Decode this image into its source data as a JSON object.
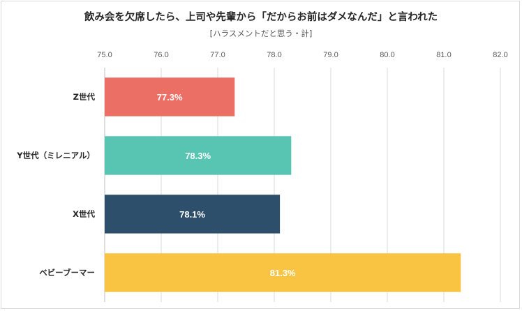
{
  "chart_data": {
    "type": "bar",
    "orientation": "horizontal",
    "title": "飲み会を欠席したら、上司や先輩から「だからお前はダメなんだ」と言われた",
    "subtitle": "[ハラスメントだと思う・計]",
    "categories": [
      "Z世代",
      "Y世代（ミレニアル）",
      "X世代",
      "ベビーブーマー"
    ],
    "values": [
      77.3,
      78.3,
      78.1,
      81.3
    ],
    "data_labels": [
      "77.3%",
      "78.3%",
      "78.1%",
      "81.3%"
    ],
    "colors": [
      "#ec6f66",
      "#58c4b2",
      "#2d4f6c",
      "#f9c441"
    ],
    "xlim": [
      75.0,
      82.0
    ],
    "xticks": [
      75.0,
      76.0,
      77.0,
      78.0,
      79.0,
      80.0,
      81.0,
      82.0
    ],
    "xtick_labels": [
      "75.0",
      "76.0",
      "77.0",
      "78.0",
      "79.0",
      "80.0",
      "81.0",
      "82.0"
    ],
    "tick_position": "top",
    "grid": true,
    "legend": false
  }
}
